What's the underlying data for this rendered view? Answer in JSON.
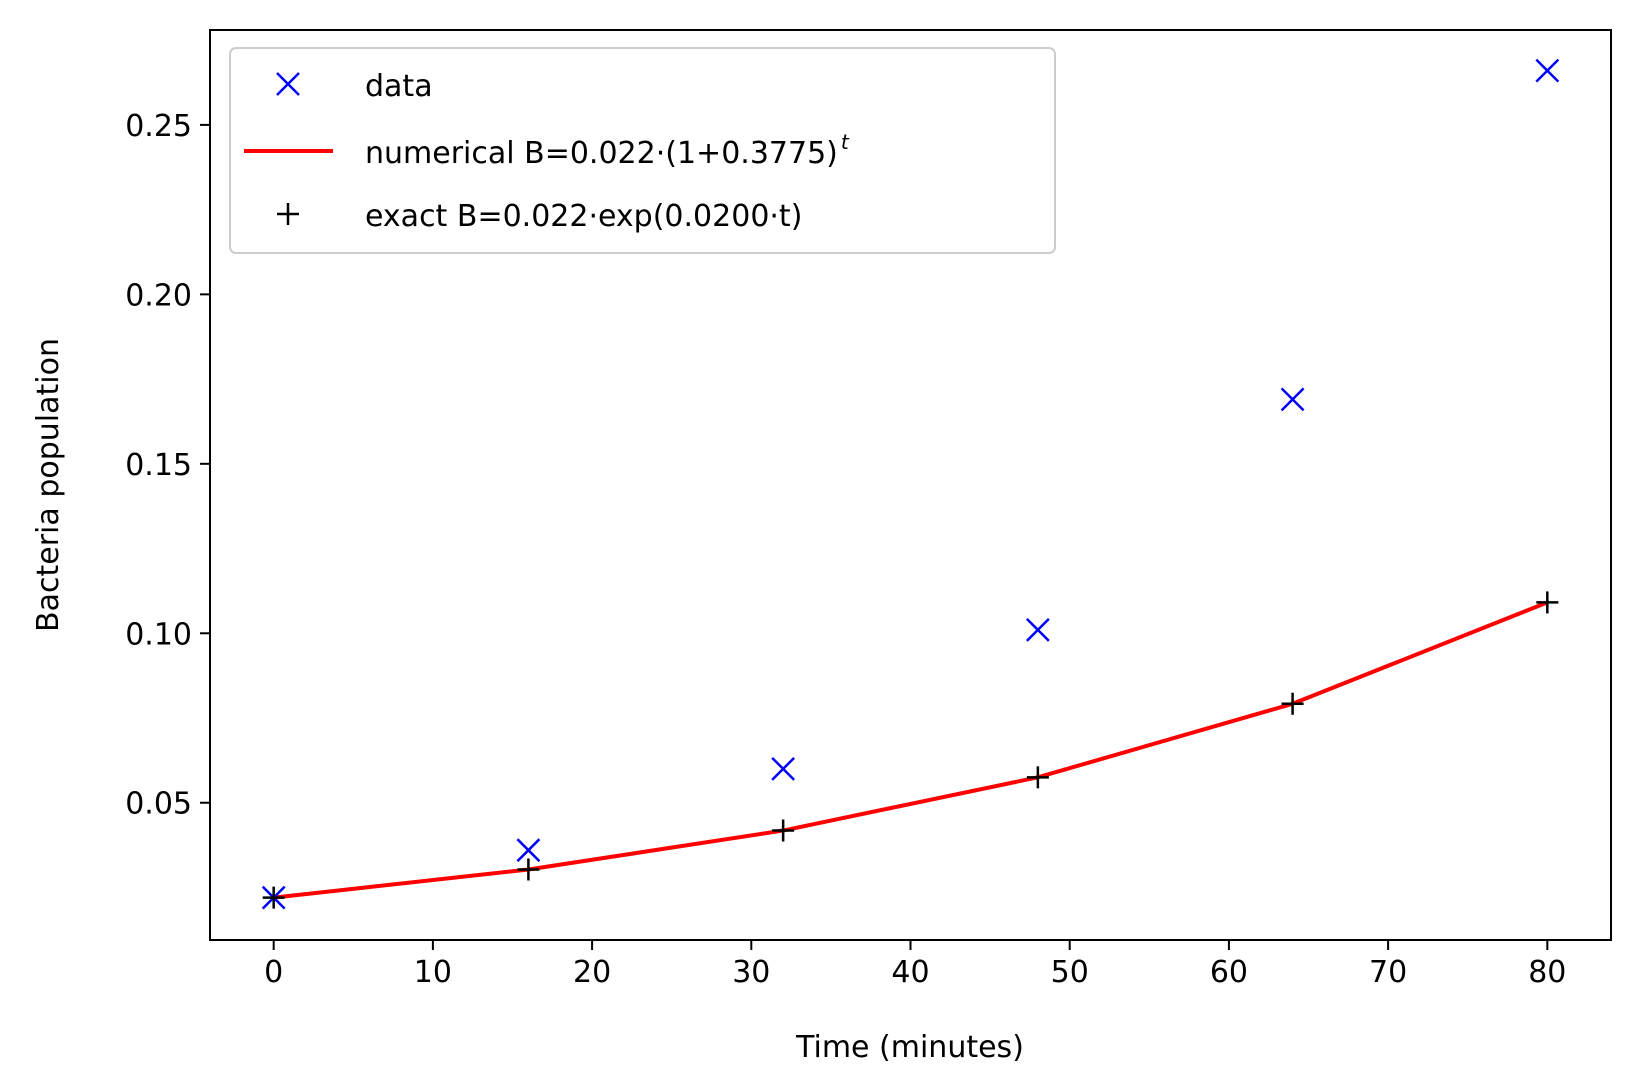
{
  "chart_data": {
    "type": "line",
    "title": "",
    "xlabel": "Time (minutes)",
    "ylabel": "Bacteria population",
    "xlim": [
      -4,
      84
    ],
    "ylim": [
      0.0095,
      0.278
    ],
    "xticks": [
      0,
      10,
      20,
      30,
      40,
      50,
      60,
      70,
      80
    ],
    "xtick_labels": [
      "0",
      "10",
      "20",
      "30",
      "40",
      "50",
      "60",
      "70",
      "80"
    ],
    "yticks": [
      0.05,
      0.1,
      0.15,
      0.2,
      0.25
    ],
    "ytick_labels": [
      "0.05",
      "0.10",
      "0.15",
      "0.20",
      "0.25"
    ],
    "grid": false,
    "legend_position": "top-left",
    "series": [
      {
        "name": "data",
        "kind": "marker-x",
        "color": "#0000ff",
        "x": [
          0,
          16,
          32,
          48,
          64,
          80
        ],
        "values": [
          0.022,
          0.036,
          0.06,
          0.101,
          0.169,
          0.266
        ]
      },
      {
        "name": "numerical B=0.022·(1+0.3775)",
        "superscript": "t",
        "kind": "line",
        "color": "#ff0000",
        "x": [
          0,
          16,
          32,
          48,
          64,
          80
        ],
        "values": [
          0.022,
          0.0303,
          0.0418,
          0.0575,
          0.0792,
          0.1091
        ]
      },
      {
        "name": "exact B=0.022·exp(0.0200·t)",
        "kind": "marker-plus",
        "color": "#000000",
        "x": [
          0,
          16,
          32,
          48,
          64,
          80
        ],
        "values": [
          0.022,
          0.0303,
          0.0418,
          0.0575,
          0.0792,
          0.1091
        ]
      }
    ]
  }
}
